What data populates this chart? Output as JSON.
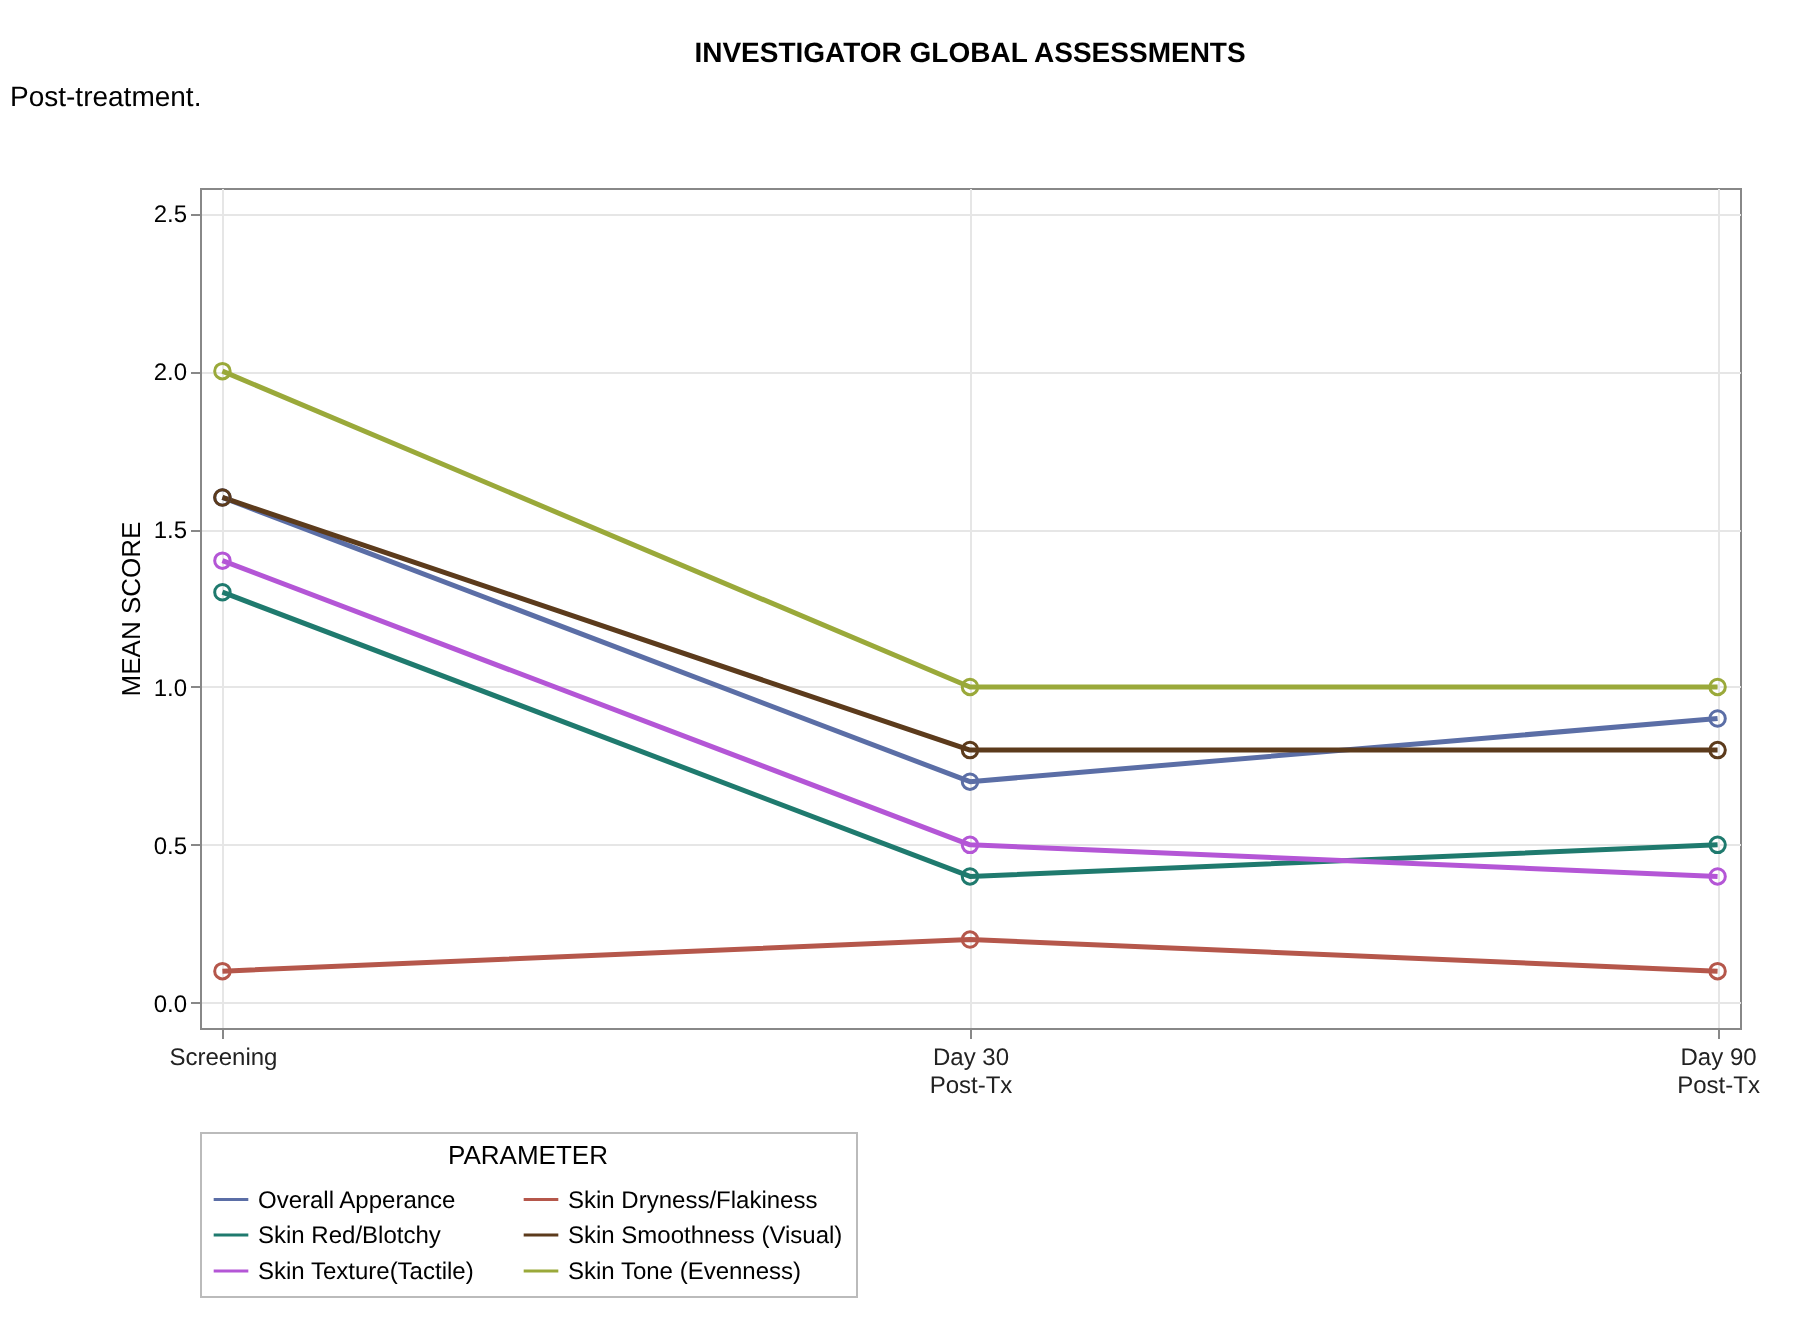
{
  "chart_data": {
    "type": "line",
    "title": "INVESTIGATOR GLOBAL ASSESSMENTS",
    "ylabel": "MEAN SCORE",
    "legend_title": "PARAMETER",
    "annotations": [
      "Post-treatment."
    ],
    "categories": [
      "Screening",
      "Day 30\nPost-Tx",
      "Day 90\nPost-Tx"
    ],
    "series": [
      {
        "name": "Overall Apperance",
        "color": "#5b6ea6",
        "values": [
          1.6,
          0.7,
          0.9
        ]
      },
      {
        "name": "Skin Dryness/Flakiness",
        "color": "#b5574b",
        "values": [
          0.1,
          0.2,
          0.1
        ]
      },
      {
        "name": "Skin Red/Blotchy",
        "color": "#1f7a6e",
        "values": [
          1.3,
          0.4,
          0.5
        ]
      },
      {
        "name": "Skin Smoothness (Visual)",
        "color": "#5c3b1c",
        "values": [
          1.6,
          0.8,
          0.8
        ]
      },
      {
        "name": "Skin Texture(Tactile)",
        "color": "#b456d6",
        "values": [
          1.4,
          0.5,
          0.4
        ]
      },
      {
        "name": "Skin Tone (Evenness)",
        "color": "#9aa93a",
        "values": [
          2.0,
          1.0,
          1.0
        ]
      }
    ],
    "ylim": [
      -0.08,
      2.58
    ],
    "yticks": [
      {
        "value": 0,
        "label": "0.0"
      },
      0.5,
      {
        "value": 1,
        "label": "1.0"
      },
      1.5,
      {
        "value": 2,
        "label": "2.0"
      },
      2.5
    ],
    "grid": true,
    "legend": "bottom",
    "marker": "circle",
    "line_style": "solid"
  }
}
